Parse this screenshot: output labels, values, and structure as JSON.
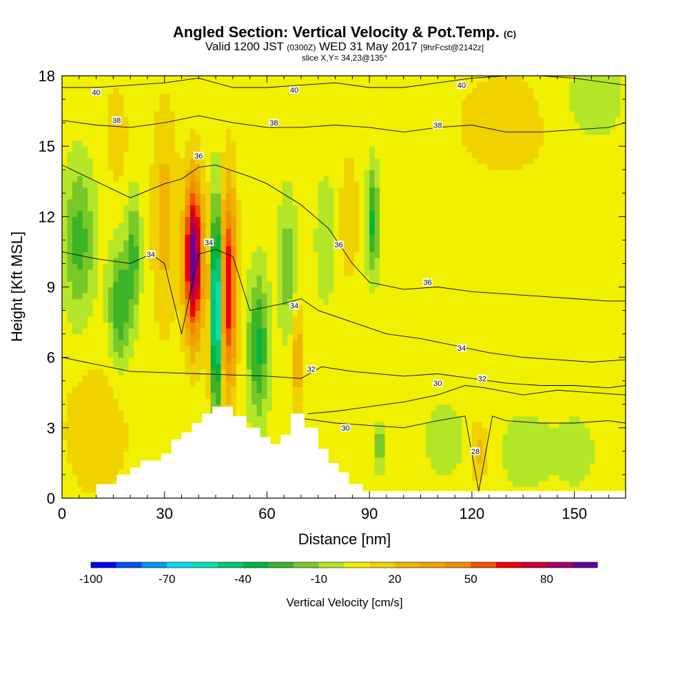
{
  "header": {
    "title": "Angled Section: Vertical Velocity & Pot.Temp.",
    "title_unit": "(C)",
    "valid_prefix": "Valid 1200 JST",
    "valid_utc": "(0300Z)",
    "valid_date": "WED 31 May 2017",
    "forecast": "[9hrFcst@2142z]",
    "slice": "slice X,Y= 34,23@135°"
  },
  "chart_data": {
    "type": "heatmap",
    "title": "Angled Section: Vertical Velocity & Pot.Temp.",
    "xlabel": "Distance [nm]",
    "ylabel": "Height [Kft MSL]",
    "xlim": [
      0,
      165
    ],
    "ylim": [
      0,
      18
    ],
    "x_ticks": [
      "0",
      "30",
      "60",
      "90",
      "120",
      "150"
    ],
    "x_tick_values": [
      0,
      30,
      60,
      90,
      120,
      150
    ],
    "y_ticks": [
      "0",
      "3",
      "6",
      "9",
      "12",
      "15",
      "18"
    ],
    "y_tick_values": [
      0,
      3,
      6,
      9,
      12,
      15,
      18
    ],
    "colorbar": {
      "label": "Vertical Velocity [cm/s]",
      "range": [
        -100,
        100
      ],
      "tick_labels": [
        "-100",
        "-70",
        "-40",
        "-10",
        "20",
        "50",
        "80"
      ],
      "tick_values": [
        -100,
        -70,
        -40,
        -10,
        20,
        50,
        80
      ],
      "colors": [
        "#0000f0",
        "#0050f0",
        "#0096f0",
        "#00dcf0",
        "#00e0b0",
        "#00c878",
        "#00b43c",
        "#3cb428",
        "#78c828",
        "#b4e628",
        "#f0f000",
        "#f0d200",
        "#f0b400",
        "#f0a000",
        "#f08c00",
        "#f05000",
        "#f00000",
        "#c80032",
        "#a00064",
        "#64009b"
      ]
    },
    "terrain_profile": {
      "x": [
        0,
        10,
        10,
        16,
        16,
        20,
        20,
        23,
        23,
        29,
        29,
        32,
        32,
        35,
        35,
        38,
        38,
        41,
        41,
        44,
        44,
        47,
        47,
        50,
        50,
        54,
        54,
        58,
        58,
        61,
        61,
        64,
        64,
        67,
        67,
        71,
        71,
        75,
        75,
        78,
        78,
        81,
        81,
        84,
        84,
        88,
        88,
        165
      ],
      "y": [
        0,
        0,
        0.6,
        0.6,
        1.0,
        1.0,
        1.3,
        1.3,
        1.6,
        1.6,
        1.9,
        1.9,
        2.5,
        2.5,
        2.8,
        2.8,
        3.2,
        3.2,
        3.6,
        3.6,
        3.9,
        3.9,
        3.9,
        3.9,
        3.5,
        3.5,
        3.0,
        3.0,
        2.6,
        2.6,
        2.3,
        2.3,
        2.7,
        2.7,
        3.6,
        3.6,
        3.0,
        3.0,
        2.1,
        2.1,
        1.5,
        1.5,
        1.1,
        1.1,
        0.6,
        0.6,
        0.3,
        0.3
      ]
    },
    "vertical_velocity_features": [
      {
        "x": 38.5,
        "y": 10.2,
        "amplitude": 95,
        "x_radius": 2.6,
        "y_radius": 3.2
      },
      {
        "x": 43.5,
        "y": 8.2,
        "amplitude": 22,
        "x_radius": 1.5,
        "y_radius": 4.5
      },
      {
        "x": 45.0,
        "y": 8.2,
        "amplitude": -95,
        "x_radius": 1.4,
        "y_radius": 4.3
      },
      {
        "x": 48.8,
        "y": 9.0,
        "amplitude": 65,
        "x_radius": 2.2,
        "y_radius": 4.2
      },
      {
        "x": 57.5,
        "y": 6.5,
        "amplitude": -38,
        "x_radius": 3.0,
        "y_radius": 3.0
      },
      {
        "x": 91.0,
        "y": 11.8,
        "amplitude": -38,
        "x_radius": 1.8,
        "y_radius": 2.2
      },
      {
        "x": 5.0,
        "y": 11.0,
        "amplitude": -30,
        "x_radius": 4.5,
        "y_radius": 3.2
      },
      {
        "x": 17.0,
        "y": 8.2,
        "amplitude": -35,
        "x_radius": 3.2,
        "y_radius": 2.5
      },
      {
        "x": 21.0,
        "y": 10.5,
        "amplitude": -28,
        "x_radius": 2.0,
        "y_radius": 2.5
      },
      {
        "x": 30.0,
        "y": 12.0,
        "amplitude": 20,
        "x_radius": 3.5,
        "y_radius": 4.5
      },
      {
        "x": 16.0,
        "y": 15.5,
        "amplitude": 14,
        "x_radius": 3.0,
        "y_radius": 2.0
      },
      {
        "x": 69.0,
        "y": 6.0,
        "amplitude": 28,
        "x_radius": 1.5,
        "y_radius": 2.0
      },
      {
        "x": 66.0,
        "y": 10.0,
        "amplitude": -22,
        "x_radius": 2.5,
        "y_radius": 3.0
      },
      {
        "x": 77.0,
        "y": 11.0,
        "amplitude": -12,
        "x_radius": 3.0,
        "y_radius": 3.0
      },
      {
        "x": 84.0,
        "y": 12.0,
        "amplitude": 16,
        "x_radius": 2.5,
        "y_radius": 2.5
      },
      {
        "x": 93.0,
        "y": 2.2,
        "amplitude": -28,
        "x_radius": 1.5,
        "y_radius": 0.9
      },
      {
        "x": 112.0,
        "y": 2.5,
        "amplitude": -15,
        "x_radius": 5.0,
        "y_radius": 1.5
      },
      {
        "x": 122.0,
        "y": 2.0,
        "amplitude": 18,
        "x_radius": 2.5,
        "y_radius": 1.2
      },
      {
        "x": 136.0,
        "y": 2.0,
        "amplitude": -15,
        "x_radius": 7.0,
        "y_radius": 1.5
      },
      {
        "x": 150.0,
        "y": 2.0,
        "amplitude": -12,
        "x_radius": 6.0,
        "y_radius": 1.5
      },
      {
        "x": 10.0,
        "y": 3.0,
        "amplitude": 12,
        "x_radius": 10.0,
        "y_radius": 3.0
      },
      {
        "x": 155.0,
        "y": 17.0,
        "amplitude": -12,
        "x_radius": 10.0,
        "y_radius": 2.0
      },
      {
        "x": 130.0,
        "y": 16.0,
        "amplitude": 8,
        "x_radius": 20.0,
        "y_radius": 3.0
      }
    ],
    "potential_temperature_contours": [
      {
        "label": "28",
        "x": [
          70,
          80,
          90,
          100,
          110,
          118,
          122,
          126,
          130,
          140,
          150,
          160,
          165
        ],
        "y": [
          3.4,
          3.2,
          3.1,
          3.0,
          3.3,
          3.5,
          0.3,
          3.5,
          3.3,
          3.2,
          3.2,
          3.3,
          3.2
        ]
      },
      {
        "label": "30",
        "x": [
          72,
          80,
          90,
          100,
          110,
          118,
          124,
          135,
          145,
          155,
          165
        ],
        "y": [
          3.6,
          3.7,
          3.9,
          4.1,
          4.4,
          4.8,
          4.7,
          4.4,
          4.6,
          4.5,
          4.4
        ]
      },
      {
        "label": "32",
        "x": [
          0,
          20,
          40,
          60,
          70,
          76,
          85,
          100,
          110,
          120,
          130,
          140,
          150,
          160,
          165
        ],
        "y": [
          6.0,
          5.4,
          5.3,
          5.2,
          5.1,
          5.6,
          5.4,
          5.2,
          5.3,
          5.1,
          4.9,
          4.8,
          4.8,
          4.7,
          4.8
        ]
      },
      {
        "label": "34",
        "x": [
          0,
          10,
          20,
          26,
          30,
          35,
          40,
          45,
          50,
          55,
          65,
          70,
          75,
          85,
          95,
          105,
          115,
          125,
          135,
          145,
          155,
          165
        ],
        "y": [
          10.5,
          10.2,
          10.0,
          10.4,
          10.0,
          7.0,
          10.4,
          10.6,
          10.3,
          8.0,
          8.3,
          8.5,
          8.0,
          7.5,
          7.0,
          6.8,
          6.5,
          6.2,
          6.0,
          5.9,
          5.8,
          5.9
        ]
      },
      {
        "label": "36",
        "x": [
          0,
          10,
          20,
          30,
          35,
          40,
          45,
          55,
          60,
          70,
          78,
          85,
          90,
          100,
          110,
          120,
          130,
          140,
          150,
          160,
          165
        ],
        "y": [
          14.2,
          13.5,
          12.8,
          13.4,
          13.6,
          14.1,
          14.2,
          13.7,
          13.4,
          12.5,
          11.5,
          10.0,
          9.2,
          8.9,
          9.0,
          8.8,
          8.7,
          8.6,
          8.5,
          8.4,
          8.4
        ]
      },
      {
        "label": "38",
        "x": [
          0,
          10,
          20,
          30,
          40,
          50,
          60,
          70,
          80,
          90,
          100,
          110,
          120,
          130,
          140,
          150,
          160,
          165
        ],
        "y": [
          16.1,
          15.9,
          15.8,
          16.0,
          16.3,
          16.0,
          15.8,
          15.8,
          15.9,
          15.8,
          15.6,
          15.8,
          15.9,
          15.6,
          15.6,
          15.7,
          15.8,
          16.0
        ]
      },
      {
        "label": "40",
        "x": [
          0,
          10,
          20,
          30,
          40,
          50,
          60,
          70,
          80,
          90,
          100,
          110,
          120,
          130,
          140,
          150,
          160,
          165
        ],
        "y": [
          17.5,
          17.5,
          17.6,
          17.7,
          17.9,
          17.5,
          17.5,
          17.6,
          17.7,
          17.5,
          17.5,
          17.7,
          17.9,
          18.0,
          18.0,
          17.9,
          17.7,
          17.6
        ]
      }
    ],
    "contour_labels": [
      {
        "text": "40",
        "x": 10,
        "y": 17.3
      },
      {
        "text": "40",
        "x": 68,
        "y": 17.4
      },
      {
        "text": "40",
        "x": 117,
        "y": 17.6
      },
      {
        "text": "38",
        "x": 16,
        "y": 16.1
      },
      {
        "text": "38",
        "x": 62,
        "y": 16.0
      },
      {
        "text": "38",
        "x": 110,
        "y": 15.9
      },
      {
        "text": "36",
        "x": 40,
        "y": 14.6
      },
      {
        "text": "36",
        "x": 81,
        "y": 10.8
      },
      {
        "text": "36",
        "x": 107,
        "y": 9.2
      },
      {
        "text": "34",
        "x": 26,
        "y": 10.4
      },
      {
        "text": "34",
        "x": 43,
        "y": 10.9
      },
      {
        "text": "34",
        "x": 68,
        "y": 8.2
      },
      {
        "text": "34",
        "x": 117,
        "y": 6.4
      },
      {
        "text": "32",
        "x": 73,
        "y": 5.5
      },
      {
        "text": "32",
        "x": 123,
        "y": 5.1
      },
      {
        "text": "30",
        "x": 110,
        "y": 4.9
      },
      {
        "text": "30",
        "x": 83,
        "y": 3.0
      },
      {
        "text": "28",
        "x": 121,
        "y": 2.0
      }
    ]
  }
}
